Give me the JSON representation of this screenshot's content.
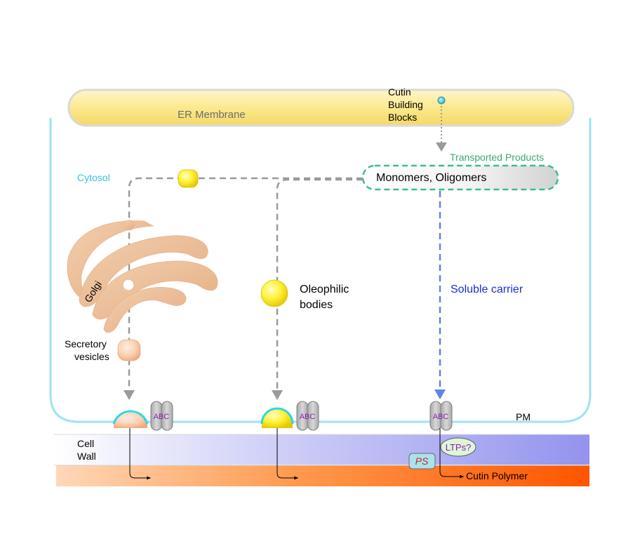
{
  "labels": {
    "cutin_line1": "Cutin",
    "cutin_line2": "Building",
    "cutin_line3": "Blocks",
    "er_membrane": "ER Membrane",
    "transported_products": "Transported Products",
    "monomers_oligomers": "Monomers, Oligomers",
    "cytosol": "Cytosol",
    "golgi": "Golgi",
    "oleophilic_line1": "Oleophilic",
    "oleophilic_line2": "bodies",
    "soluble_carrier": "Soluble carrier",
    "secretory_line1": "Secretory",
    "secretory_line2": "vesicles",
    "abc_1": "ABC",
    "abc_2": "ABC",
    "abc_3": "ABC",
    "pm": "PM",
    "cell_line1": "Cell",
    "cell_line2": "Wall",
    "ltps": "LTPs?",
    "ps": "PS",
    "cutin_polymer": "Cutin Polymer"
  },
  "colors": {
    "er_fill": "#fbe98e",
    "cell_outline": "#9ee3f3",
    "cytosol_label": "#33c3df",
    "transported": "#3aa873",
    "soluble_carrier": "#1a2fd6",
    "abc_text": "#8a1fb5",
    "ps_text": "#d42020",
    "arrow_gray": "#9a9a9a",
    "arrow_blue": "#5b86e6",
    "wall_purple": "#9b9bf0",
    "polymer_orange": "#ff5a00"
  }
}
